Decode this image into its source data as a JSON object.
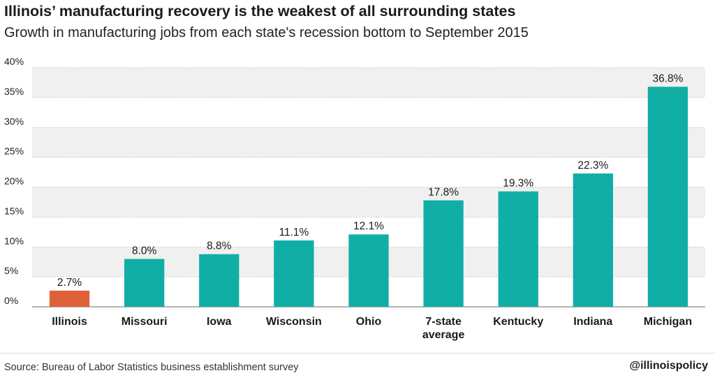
{
  "header": {
    "title": "Illinois’ manufacturing recovery is the weakest of all surrounding states",
    "subtitle": "Growth in manufacturing jobs from each state's recession bottom to September 2015"
  },
  "footer": {
    "source": "Source: Bureau of Labor Statistics business establishment survey",
    "handle": "@illinoispolicy"
  },
  "chart_data": {
    "type": "bar",
    "title": "Illinois’ manufacturing recovery is the weakest of all surrounding states",
    "subtitle": "Growth in manufacturing jobs from each state's recession bottom to September 2015",
    "categories": [
      "Illinois",
      "Missouri",
      "Iowa",
      "Wisconsin",
      "Ohio",
      "7-state average",
      "Kentucky",
      "Indiana",
      "Michigan"
    ],
    "category_lines": [
      [
        "Illinois"
      ],
      [
        "Missouri"
      ],
      [
        "Iowa"
      ],
      [
        "Wisconsin"
      ],
      [
        "Ohio"
      ],
      [
        "7-state",
        "average"
      ],
      [
        "Kentucky"
      ],
      [
        "Indiana"
      ],
      [
        "Michigan"
      ]
    ],
    "values": [
      2.7,
      8.0,
      8.8,
      11.1,
      12.1,
      17.8,
      19.3,
      22.3,
      36.8
    ],
    "value_labels": [
      "2.7%",
      "8.0%",
      "8.8%",
      "11.1%",
      "12.1%",
      "17.8%",
      "19.3%",
      "22.3%",
      "36.8%"
    ],
    "ylim": [
      0,
      40
    ],
    "yticks": [
      0,
      5,
      10,
      15,
      20,
      25,
      30,
      35,
      40
    ],
    "ytick_labels": [
      "0%",
      "5%",
      "10%",
      "15%",
      "20%",
      "25%",
      "30%",
      "35%",
      "40%"
    ],
    "xlabel": "",
    "ylabel": "",
    "grid": true,
    "colors": {
      "bar": "#11aea6",
      "highlight": "#e0603a",
      "highlight_index": 0,
      "band": "#f0f0f0",
      "gridline": "#c9c9c9"
    }
  }
}
